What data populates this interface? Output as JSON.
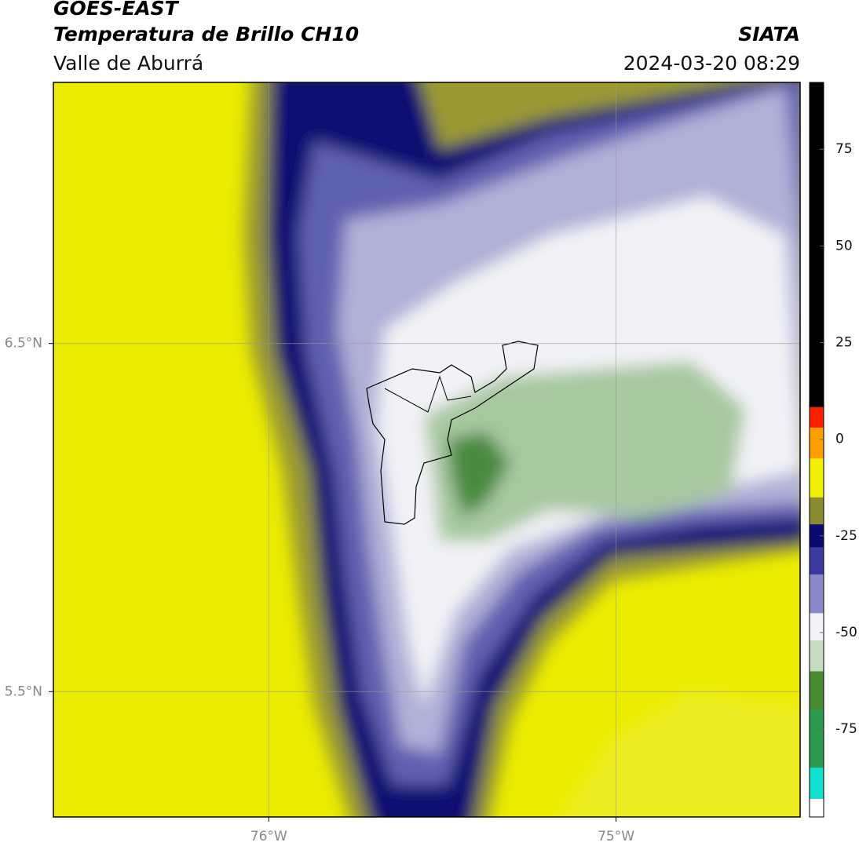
{
  "header": {
    "title": "GOES-EAST",
    "subtitle": "Temperatura de Brillo CH10",
    "region": "Valle de Aburrá",
    "source": "SIATA",
    "datetime": "2024-03-20 08:29"
  },
  "map": {
    "lon_range": [
      -76.62,
      -74.47
    ],
    "lat_range": [
      7.25,
      5.14
    ],
    "lon_ticks": [
      {
        "value": -76,
        "label": "76°W"
      },
      {
        "value": -75,
        "label": "75°W"
      }
    ],
    "lat_ticks": [
      {
        "value": 6.5,
        "label": "6.5°N"
      },
      {
        "value": 5.5,
        "label": "5.5°N"
      }
    ],
    "grid": true
  },
  "colorbar": {
    "range": [
      -97.7,
      92.3
    ],
    "ticks": [
      75,
      50,
      25,
      0,
      -25,
      -50,
      -75
    ],
    "colors": [
      {
        "from": -97.7,
        "to": -93,
        "color": "#ffffff"
      },
      {
        "from": -93,
        "to": -85,
        "color": "#10e0d0"
      },
      {
        "from": -85,
        "to": -70,
        "color": "#2a9a50"
      },
      {
        "from": -70,
        "to": -60,
        "color": "#4a8a30"
      },
      {
        "from": -60,
        "to": -52,
        "color": "#c8dcc0"
      },
      {
        "from": -52,
        "to": -45,
        "color": "#f4f4f8"
      },
      {
        "from": -45,
        "to": -35,
        "color": "#8a8ac8"
      },
      {
        "from": -35,
        "to": -28,
        "color": "#3a3aa0"
      },
      {
        "from": -28,
        "to": -22,
        "color": "#0a0a70"
      },
      {
        "from": -22,
        "to": -15,
        "color": "#8a8a30"
      },
      {
        "from": -15,
        "to": -5,
        "color": "#f0f000"
      },
      {
        "from": -5,
        "to": 3,
        "color": "#ffa000"
      },
      {
        "from": 3,
        "to": 8.3,
        "color": "#ff2000"
      },
      {
        "from": 8.3,
        "to": 92.3,
        "color": "#000000"
      }
    ]
  }
}
